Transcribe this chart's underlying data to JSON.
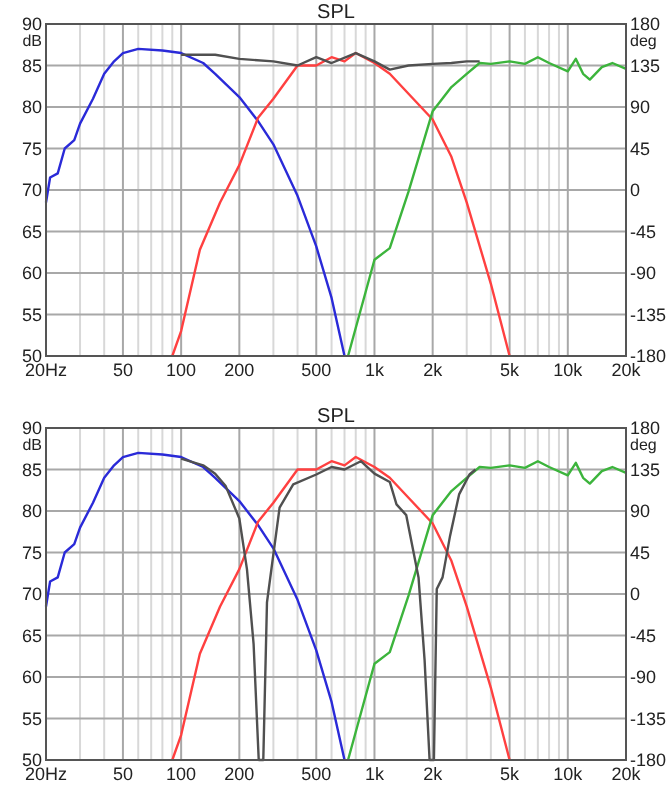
{
  "chart_data": [
    {
      "type": "line",
      "title": "SPL",
      "ylabel": "dB",
      "y2label": "deg",
      "log": "x",
      "grid": true,
      "xlim": [
        20,
        20000
      ],
      "ylim": [
        50,
        90
      ],
      "y2lim": [
        -180,
        180
      ],
      "xticks": [
        {
          "value": 20,
          "label": "20Hz"
        },
        {
          "value": 30,
          "label": null
        },
        {
          "value": 40,
          "label": null
        },
        50,
        {
          "value": 60,
          "label": null
        },
        {
          "value": 70,
          "label": null
        },
        {
          "value": 80,
          "label": null
        },
        {
          "value": 90,
          "label": null
        },
        100,
        200,
        {
          "value": 300,
          "label": null
        },
        {
          "value": 400,
          "label": null
        },
        500,
        {
          "value": 600,
          "label": null
        },
        {
          "value": 700,
          "label": null
        },
        {
          "value": 800,
          "label": null
        },
        {
          "value": 900,
          "label": null
        },
        {
          "value": 1000,
          "label": "1k"
        },
        {
          "value": 2000,
          "label": "2k"
        },
        {
          "value": 3000,
          "label": null
        },
        {
          "value": 4000,
          "label": null
        },
        {
          "value": 5000,
          "label": "5k"
        },
        {
          "value": 6000,
          "label": null
        },
        {
          "value": 7000,
          "label": null
        },
        {
          "value": 8000,
          "label": null
        },
        {
          "value": 9000,
          "label": null
        },
        {
          "value": 10000,
          "label": "10k"
        },
        {
          "value": 20000,
          "label": "20k"
        }
      ],
      "yticks": [
        50,
        55,
        60,
        65,
        70,
        75,
        80,
        85,
        90
      ],
      "y2ticks": [
        -180,
        -135,
        -90,
        -45,
        0,
        45,
        90,
        135,
        180
      ],
      "series": [
        {
          "color": "#2a2ad8",
          "x": [
            20,
            21,
            23,
            25,
            28,
            30,
            35,
            40,
            45,
            50,
            60,
            80,
            100,
            130,
            150,
            200,
            250,
            300,
            400,
            500,
            600,
            700
          ],
          "values": [
            68.5,
            71.5,
            72,
            75,
            76,
            78,
            81,
            84,
            85.5,
            86.5,
            87,
            86.8,
            86.5,
            85.3,
            84,
            81.2,
            78.3,
            75.5,
            69.3,
            63.2,
            57,
            50
          ]
        },
        {
          "color": "#ff4040",
          "x": [
            90,
            100,
            125,
            159,
            200,
            250,
            300,
            400,
            500,
            600,
            700,
            800,
            1000,
            1200,
            1500,
            2000,
            2500,
            3000,
            4000,
            5000
          ],
          "values": [
            50,
            53,
            62.8,
            68.5,
            73,
            78.7,
            81,
            85,
            85,
            86,
            85.5,
            86.5,
            85.3,
            84,
            81.6,
            78.5,
            74,
            68.5,
            58.7,
            50
          ]
        },
        {
          "color": "#3cb43c",
          "x": [
            730,
            1000,
            1200,
            1500,
            2000,
            2500,
            3000,
            3500,
            4000,
            5000,
            6000,
            7000,
            8000,
            10000,
            11000,
            12000,
            13000,
            15000,
            17000,
            20000
          ],
          "values": [
            50,
            61.6,
            63,
            69.8,
            79.5,
            82.4,
            84,
            85.3,
            85.2,
            85.5,
            85.2,
            86,
            85.3,
            84.3,
            85.8,
            84,
            83.3,
            84.8,
            85.3,
            84.6
          ]
        },
        {
          "color": "#505050",
          "x": [
            100,
            150,
            200,
            300,
            400,
            500,
            600,
            800,
            1000,
            1200,
            1500,
            2000,
            2500,
            3000,
            3500
          ],
          "values": [
            86.3,
            86.3,
            85.8,
            85.5,
            85,
            86,
            85.3,
            86.5,
            85.5,
            84.5,
            85,
            85.2,
            85.3,
            85.5,
            85.5
          ]
        }
      ]
    },
    {
      "type": "line",
      "title": "SPL",
      "ylabel": "dB",
      "y2label": "deg",
      "log": "x",
      "grid": true,
      "xlim": [
        20,
        20000
      ],
      "ylim": [
        50,
        90
      ],
      "y2lim": [
        -180,
        180
      ],
      "xticks": [
        {
          "value": 20,
          "label": "20Hz"
        },
        {
          "value": 30,
          "label": null
        },
        {
          "value": 40,
          "label": null
        },
        50,
        {
          "value": 60,
          "label": null
        },
        {
          "value": 70,
          "label": null
        },
        {
          "value": 80,
          "label": null
        },
        {
          "value": 90,
          "label": null
        },
        100,
        200,
        {
          "value": 300,
          "label": null
        },
        {
          "value": 400,
          "label": null
        },
        500,
        {
          "value": 600,
          "label": null
        },
        {
          "value": 700,
          "label": null
        },
        {
          "value": 800,
          "label": null
        },
        {
          "value": 900,
          "label": null
        },
        {
          "value": 1000,
          "label": "1k"
        },
        {
          "value": 2000,
          "label": "2k"
        },
        {
          "value": 3000,
          "label": null
        },
        {
          "value": 4000,
          "label": null
        },
        {
          "value": 5000,
          "label": "5k"
        },
        {
          "value": 6000,
          "label": null
        },
        {
          "value": 7000,
          "label": null
        },
        {
          "value": 8000,
          "label": null
        },
        {
          "value": 9000,
          "label": null
        },
        {
          "value": 10000,
          "label": "10k"
        },
        {
          "value": 20000,
          "label": "20k"
        }
      ],
      "yticks": [
        50,
        55,
        60,
        65,
        70,
        75,
        80,
        85,
        90
      ],
      "y2ticks": [
        -180,
        -135,
        -90,
        -45,
        0,
        45,
        90,
        135,
        180
      ],
      "series": [
        {
          "color": "#2a2ad8",
          "x": [
            20,
            21,
            23,
            25,
            28,
            30,
            35,
            40,
            45,
            50,
            60,
            80,
            100,
            130,
            150,
            200,
            250,
            300,
            400,
            500,
            600,
            700
          ],
          "values": [
            68.5,
            71.5,
            72,
            75,
            76,
            78,
            81,
            84,
            85.5,
            86.5,
            87,
            86.8,
            86.5,
            85.3,
            84,
            81.2,
            78.3,
            75.5,
            69.3,
            63.2,
            57,
            50
          ]
        },
        {
          "color": "#ff4040",
          "x": [
            90,
            100,
            125,
            159,
            200,
            250,
            300,
            400,
            500,
            600,
            700,
            800,
            1000,
            1200,
            1500,
            2000,
            2500,
            3000,
            4000,
            5000
          ],
          "values": [
            50,
            53,
            62.8,
            68.5,
            73,
            78.7,
            81,
            85,
            85,
            86,
            85.5,
            86.5,
            85.3,
            84,
            81.6,
            78.5,
            74,
            68.5,
            58.7,
            50
          ]
        },
        {
          "color": "#3cb43c",
          "x": [
            730,
            1000,
            1200,
            1500,
            2000,
            2500,
            3000,
            3500,
            4000,
            5000,
            6000,
            7000,
            8000,
            10000,
            11000,
            12000,
            13000,
            15000,
            17000,
            20000
          ],
          "values": [
            50,
            61.6,
            63,
            69.8,
            79.5,
            82.4,
            84,
            85.3,
            85.2,
            85.5,
            85.2,
            86,
            85.3,
            84.3,
            85.8,
            84,
            83.3,
            84.8,
            85.3,
            84.6
          ]
        },
        {
          "color": "#505050",
          "x": [
            100,
            130,
            150,
            170,
            200,
            219,
            237,
            252,
            266,
            278,
            323,
            380,
            500,
            600,
            700,
            850,
            1000,
            1200,
            1300,
            1460,
            1690,
            1817,
            1928,
            2030,
            2100,
            2250,
            2460,
            2740,
            3100,
            3330
          ],
          "values": [
            86.3,
            85.5,
            84.5,
            83,
            79.1,
            73,
            64,
            50,
            50,
            69,
            80.4,
            83.2,
            84.4,
            85.3,
            85,
            86,
            84.5,
            83.5,
            80.8,
            79.5,
            72,
            62,
            50,
            50,
            70.6,
            72,
            77,
            82,
            84.4,
            85
          ]
        }
      ]
    }
  ]
}
